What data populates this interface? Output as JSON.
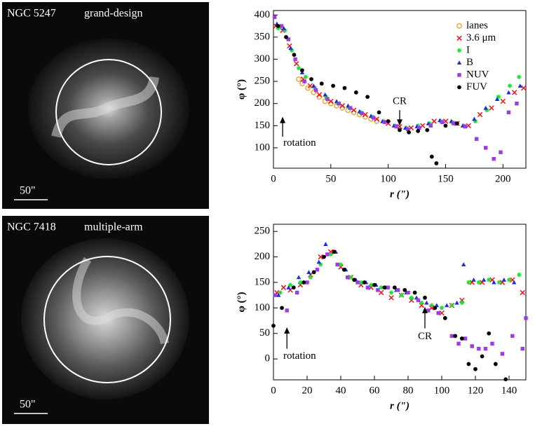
{
  "images": [
    {
      "name": "NGC 5247",
      "label": "grand-design",
      "scale": "50\""
    },
    {
      "name": "NGC 7418",
      "label": "multiple-arm",
      "scale": "50\""
    }
  ],
  "chart_data": [
    {
      "type": "scatter",
      "xlabel": "r (\")",
      "ylabel": "φ (°)",
      "xlim": [
        0,
        220
      ],
      "xticks": [
        0,
        50,
        100,
        150,
        200
      ],
      "ylim": [
        54,
        410
      ],
      "yticks": [
        100,
        150,
        200,
        250,
        300,
        350,
        400
      ],
      "legend": "upper right",
      "annotations": [
        "CR",
        "rotation"
      ],
      "series": [
        {
          "name": "lanes",
          "color": "#f0a030",
          "marker": "open-circle",
          "x": [
            22,
            25,
            30,
            35,
            40,
            45,
            50,
            55,
            60,
            65,
            70,
            75,
            80,
            85,
            90
          ],
          "values": [
            255,
            245,
            235,
            225,
            215,
            205,
            200,
            195,
            190,
            185,
            180,
            175,
            170,
            165,
            160
          ]
        },
        {
          "name": "3.6 μm",
          "color": "#e8141e",
          "marker": "cross",
          "x": [
            2,
            8,
            14,
            20,
            26,
            32,
            40,
            50,
            60,
            70,
            80,
            90,
            100,
            110,
            120,
            130,
            140,
            150,
            160,
            170,
            180,
            190,
            200,
            210,
            218
          ],
          "values": [
            375,
            365,
            330,
            290,
            255,
            240,
            220,
            205,
            195,
            185,
            175,
            165,
            155,
            148,
            145,
            150,
            160,
            160,
            155,
            150,
            175,
            190,
            205,
            225,
            235
          ]
        },
        {
          "name": "I",
          "color": "#22dd33",
          "marker": "asterisk",
          "x": [
            4,
            10,
            16,
            22,
            28,
            36,
            46,
            56,
            66,
            76,
            86,
            96,
            106,
            116,
            126,
            136,
            146,
            156,
            166,
            176,
            186,
            196,
            206,
            214
          ],
          "values": [
            370,
            365,
            320,
            280,
            260,
            235,
            215,
            200,
            190,
            180,
            170,
            160,
            150,
            145,
            150,
            155,
            160,
            158,
            150,
            160,
            185,
            215,
            240,
            260
          ]
        },
        {
          "name": "B",
          "color": "#1a2ed8",
          "marker": "triangle",
          "x": [
            3,
            9,
            15,
            25,
            35,
            45,
            55,
            65,
            75,
            85,
            95,
            105,
            115,
            125,
            135,
            145,
            155,
            165,
            175,
            185,
            195,
            205,
            215
          ],
          "values": [
            380,
            370,
            325,
            270,
            240,
            220,
            205,
            195,
            182,
            172,
            160,
            150,
            145,
            148,
            155,
            162,
            160,
            150,
            165,
            190,
            210,
            225,
            240
          ]
        },
        {
          "name": "NUV",
          "color": "#9b3de0",
          "marker": "square",
          "x": [
            1,
            7,
            13,
            19,
            27,
            37,
            47,
            57,
            67,
            77,
            87,
            97,
            107,
            117,
            127,
            137,
            147,
            157,
            167,
            177,
            185,
            192,
            198,
            205,
            212
          ],
          "values": [
            395,
            375,
            345,
            300,
            250,
            230,
            210,
            200,
            190,
            178,
            168,
            158,
            148,
            142,
            145,
            150,
            158,
            155,
            148,
            120,
            100,
            75,
            90,
            180,
            200
          ]
        },
        {
          "name": "FUV",
          "color": "#000000",
          "marker": "dot",
          "x": [
            4,
            11,
            18,
            25,
            33,
            42,
            52,
            62,
            72,
            82,
            92,
            100,
            110,
            118,
            126,
            134,
            138,
            142,
            150,
            160
          ],
          "values": [
            375,
            350,
            310,
            275,
            255,
            245,
            240,
            235,
            225,
            215,
            180,
            160,
            140,
            135,
            138,
            140,
            80,
            65,
            150,
            155
          ]
        }
      ]
    },
    {
      "type": "scatter",
      "xlabel": "r (\")",
      "ylabel": "φ (°)",
      "xlim": [
        0,
        150
      ],
      "xticks": [
        0,
        20,
        40,
        60,
        80,
        100,
        120,
        140
      ],
      "ylim": [
        -41,
        264
      ],
      "yticks": [
        0,
        50,
        100,
        150,
        200,
        250
      ],
      "annotations": [
        "CR",
        "rotation"
      ],
      "series": [
        {
          "color": "#e8141e",
          "marker": "cross",
          "x": [
            2,
            6,
            10,
            16,
            22,
            28,
            34,
            40,
            46,
            52,
            58,
            64,
            70,
            76,
            82,
            88,
            94,
            100,
            106,
            112,
            118,
            124,
            130,
            136,
            142,
            148
          ],
          "values": [
            130,
            140,
            135,
            145,
            165,
            200,
            210,
            180,
            160,
            145,
            140,
            130,
            120,
            125,
            115,
            105,
            100,
            90,
            105,
            115,
            150,
            150,
            155,
            150,
            155,
            130
          ]
        },
        {
          "color": "#22dd33",
          "marker": "asterisk",
          "x": [
            4,
            10,
            16,
            22,
            28,
            34,
            40,
            46,
            52,
            58,
            64,
            70,
            76,
            82,
            88,
            94,
            100,
            106,
            112,
            116,
            122,
            128,
            134,
            140,
            146
          ],
          "values": [
            130,
            145,
            150,
            160,
            185,
            205,
            185,
            160,
            150,
            145,
            140,
            130,
            125,
            120,
            110,
            105,
            100,
            105,
            110,
            150,
            150,
            155,
            150,
            155,
            165
          ]
        },
        {
          "color": "#1a2ed8",
          "marker": "triangle",
          "x": [
            3,
            9,
            15,
            21,
            27,
            31,
            37,
            43,
            49,
            55,
            61,
            67,
            73,
            79,
            85,
            91,
            97,
            103,
            109,
            113,
            119,
            125,
            131,
            137,
            143
          ],
          "values": [
            125,
            140,
            160,
            170,
            190,
            225,
            210,
            175,
            155,
            150,
            145,
            140,
            135,
            130,
            120,
            110,
            105,
            105,
            110,
            185,
            155,
            155,
            150,
            155,
            150
          ]
        },
        {
          "color": "#9b3de0",
          "marker": "square",
          "x": [
            1,
            8,
            14,
            20,
            26,
            32,
            38,
            44,
            50,
            56,
            62,
            68,
            74,
            80,
            86,
            92,
            98,
            106,
            110,
            114,
            118,
            122,
            126,
            130,
            136,
            142,
            148,
            150
          ],
          "values": [
            125,
            95,
            130,
            150,
            175,
            205,
            185,
            160,
            150,
            140,
            135,
            140,
            135,
            130,
            115,
            95,
            90,
            45,
            30,
            40,
            25,
            20,
            20,
            30,
            10,
            45,
            20,
            80
          ]
        },
        {
          "color": "#000000",
          "marker": "dot",
          "x": [
            0,
            5,
            12,
            18,
            24,
            30,
            36,
            42,
            48,
            54,
            60,
            66,
            72,
            78,
            84,
            90,
            96,
            102,
            108,
            112,
            116,
            120,
            124,
            128,
            132,
            138
          ],
          "values": [
            65,
            100,
            140,
            150,
            170,
            200,
            210,
            175,
            155,
            150,
            145,
            140,
            140,
            135,
            130,
            120,
            100,
            80,
            45,
            40,
            -10,
            -20,
            5,
            50,
            -10,
            -40
          ]
        }
      ]
    }
  ]
}
